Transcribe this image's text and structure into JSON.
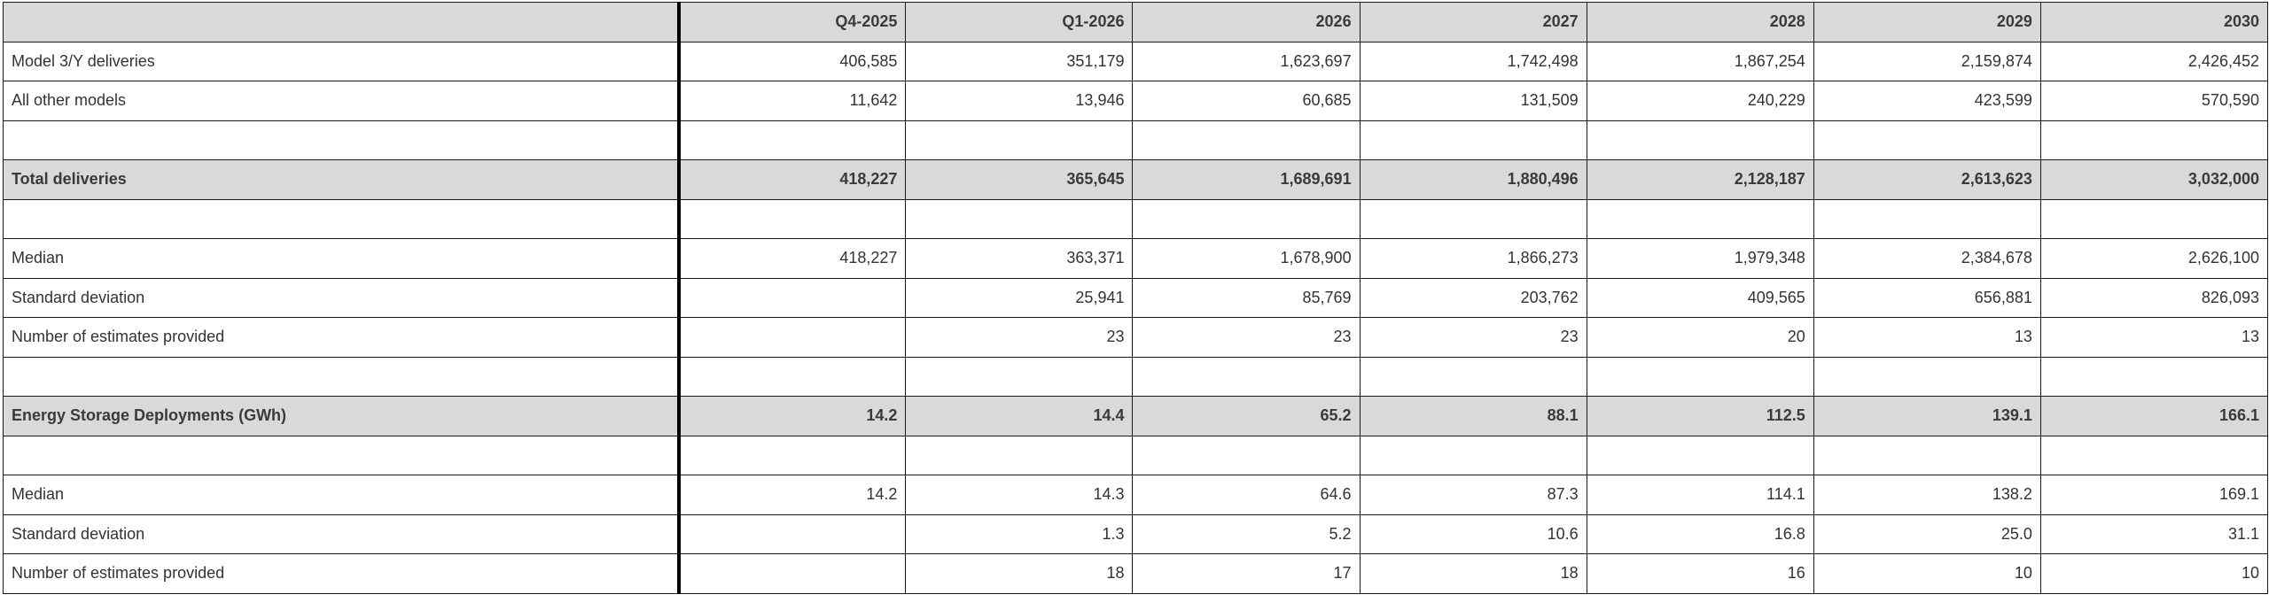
{
  "columns": [
    "",
    "Q4-2025",
    "Q1-2026",
    "2026",
    "2027",
    "2028",
    "2029",
    "2030"
  ],
  "rows": [
    {
      "type": "data",
      "label": "Model 3/Y deliveries",
      "values": [
        "406,585",
        "351,179",
        "1,623,697",
        "1,742,498",
        "1,867,254",
        "2,159,874",
        "2,426,452"
      ]
    },
    {
      "type": "data",
      "label": "All other models",
      "values": [
        "11,642",
        "13,946",
        "60,685",
        "131,509",
        "240,229",
        "423,599",
        "570,590"
      ]
    },
    {
      "type": "blank",
      "label": "",
      "values": [
        "",
        "",
        "",
        "",
        "",
        "",
        ""
      ]
    },
    {
      "type": "total",
      "label": "Total deliveries",
      "values": [
        "418,227",
        "365,645",
        "1,689,691",
        "1,880,496",
        "2,128,187",
        "2,613,623",
        "3,032,000"
      ]
    },
    {
      "type": "blank",
      "label": "",
      "values": [
        "",
        "",
        "",
        "",
        "",
        "",
        ""
      ]
    },
    {
      "type": "data",
      "label": "Median",
      "values": [
        "418,227",
        "363,371",
        "1,678,900",
        "1,866,273",
        "1,979,348",
        "2,384,678",
        "2,626,100"
      ]
    },
    {
      "type": "data",
      "label": "Standard deviation",
      "values": [
        "",
        "25,941",
        "85,769",
        "203,762",
        "409,565",
        "656,881",
        "826,093"
      ]
    },
    {
      "type": "data",
      "label": "Number of estimates provided",
      "values": [
        "",
        "23",
        "23",
        "23",
        "20",
        "13",
        "13"
      ]
    },
    {
      "type": "blank",
      "label": "",
      "values": [
        "",
        "",
        "",
        "",
        "",
        "",
        ""
      ]
    },
    {
      "type": "total",
      "label": "Energy Storage Deployments (GWh)",
      "values": [
        "14.2",
        "14.4",
        "65.2",
        "88.1",
        "112.5",
        "139.1",
        "166.1"
      ]
    },
    {
      "type": "blank",
      "label": "",
      "values": [
        "",
        "",
        "",
        "",
        "",
        "",
        ""
      ]
    },
    {
      "type": "data",
      "label": "Median",
      "values": [
        "14.2",
        "14.3",
        "64.6",
        "87.3",
        "114.1",
        "138.2",
        "169.1"
      ]
    },
    {
      "type": "data",
      "label": "Standard deviation",
      "values": [
        "",
        "1.3",
        "5.2",
        "10.6",
        "16.8",
        "25.0",
        "31.1"
      ]
    },
    {
      "type": "data",
      "label": "Number of estimates provided",
      "values": [
        "",
        "18",
        "17",
        "18",
        "16",
        "10",
        "10"
      ]
    }
  ],
  "colors": {
    "header_bg": "#d9d9d9",
    "grid_line": "#1a1a1a",
    "text": "#333333"
  }
}
